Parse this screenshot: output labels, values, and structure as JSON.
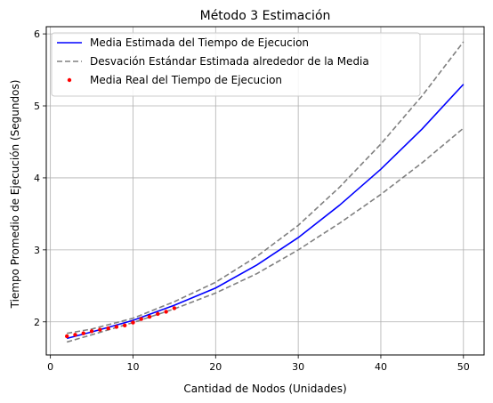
{
  "chart_data": {
    "type": "line",
    "title": "Método 3 Estimación",
    "xlabel": "Cantidad de Nodos (Unidades)",
    "ylabel": "Tiempo Promedio de Ejecución (Segundos)",
    "xlim": [
      -0.5,
      52.5
    ],
    "ylim": [
      1.54,
      6.1
    ],
    "xticks": [
      0,
      10,
      20,
      30,
      40,
      50
    ],
    "yticks": [
      2,
      3,
      4,
      5,
      6
    ],
    "grid": true,
    "legend_position": "top-left",
    "series": [
      {
        "name": "Media Estimada del Tiempo de Ejecucion",
        "style": "solid",
        "color": "#0000ff",
        "x": [
          2,
          5,
          10,
          15,
          20,
          25,
          30,
          35,
          40,
          45,
          50
        ],
        "y": [
          1.77,
          1.86,
          2.02,
          2.23,
          2.47,
          2.79,
          3.17,
          3.62,
          4.12,
          4.68,
          5.3
        ]
      },
      {
        "name": "Desvación Estándar Estimada alrededor de la Media",
        "style": "dashed",
        "color": "#808080",
        "x": [
          2,
          5,
          10,
          15,
          20,
          25,
          30,
          35,
          40,
          45,
          50
        ],
        "y": [
          1.84,
          1.9,
          2.05,
          2.28,
          2.55,
          2.91,
          3.34,
          3.87,
          4.47,
          5.14,
          5.89
        ]
      },
      {
        "name": "",
        "style": "dashed",
        "color": "#808080",
        "x": [
          2,
          5,
          10,
          15,
          20,
          25,
          30,
          35,
          40,
          45,
          50
        ],
        "y": [
          1.72,
          1.82,
          1.99,
          2.18,
          2.4,
          2.67,
          3.0,
          3.37,
          3.77,
          4.21,
          4.69
        ]
      },
      {
        "name": "Media Real del Tiempo de Ejecucion",
        "style": "markers",
        "color": "#ff0000",
        "x": [
          2,
          3,
          4,
          5,
          6,
          7,
          8,
          9,
          10,
          11,
          12,
          13,
          14,
          15
        ],
        "y": [
          1.8,
          1.82,
          1.84,
          1.87,
          1.89,
          1.91,
          1.93,
          1.95,
          1.99,
          2.04,
          2.07,
          2.11,
          2.14,
          2.19
        ]
      }
    ]
  }
}
